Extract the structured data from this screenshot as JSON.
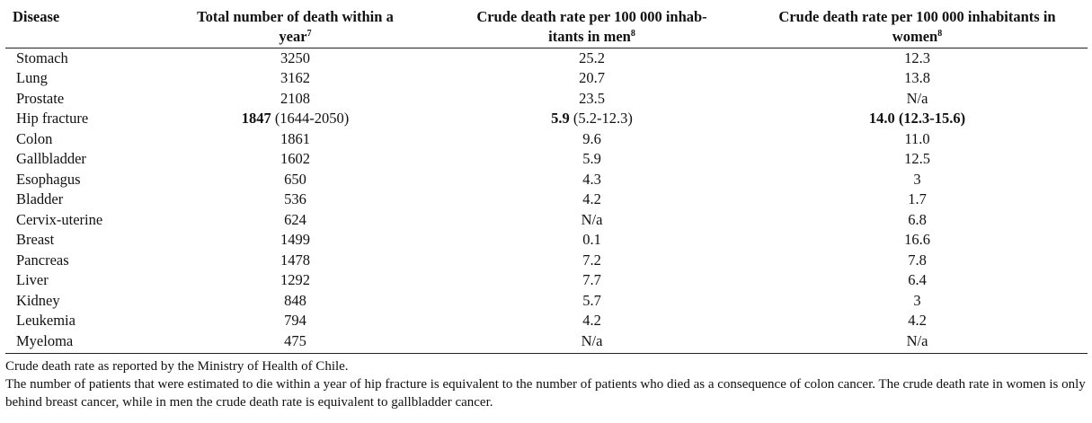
{
  "table": {
    "headers": {
      "disease": "Disease",
      "total": "Total number of death within a year",
      "total_ref": "7",
      "men": "Crude death rate per 100 000 inhab-itants in men",
      "men_ref": "8",
      "women": "Crude death rate per 100 000 inhabitants in women",
      "women_ref": "8"
    },
    "rows": [
      {
        "disease": "Stomach",
        "total": "3250",
        "men": "25.2",
        "women": "12.3"
      },
      {
        "disease": "Lung",
        "total": "3162",
        "men": "20.7",
        "women": "13.8"
      },
      {
        "disease": "Prostate",
        "total": "2108",
        "men": "23.5",
        "women": "N/a"
      },
      {
        "disease": "Hip fracture",
        "total": "1847",
        "total_ci": " (1644-2050)",
        "men": "5.9",
        "men_ci": " (5.2-12.3)",
        "women": "14.0 (12.3-15.6)",
        "highlight": true
      },
      {
        "disease": "Colon",
        "total": "1861",
        "men": "9.6",
        "women": "11.0"
      },
      {
        "disease": "Gallbladder",
        "total": "1602",
        "men": "5.9",
        "women": "12.5"
      },
      {
        "disease": "Esophagus",
        "total": "650",
        "men": "4.3",
        "women": "3"
      },
      {
        "disease": "Bladder",
        "total": "536",
        "men": "4.2",
        "women": "1.7"
      },
      {
        "disease": "Cervix-uterine",
        "total": "624",
        "men": "N/a",
        "women": "6.8"
      },
      {
        "disease": "Breast",
        "total": "1499",
        "men": "0.1",
        "women": "16.6"
      },
      {
        "disease": "Pancreas",
        "total": "1478",
        "men": "7.2",
        "women": "7.8"
      },
      {
        "disease": "Liver",
        "total": "1292",
        "men": "7.7",
        "women": "6.4"
      },
      {
        "disease": "Kidney",
        "total": "848",
        "men": "5.7",
        "women": "3"
      },
      {
        "disease": "Leukemia",
        "total": "794",
        "men": "4.2",
        "women": "4.2"
      },
      {
        "disease": "Myeloma",
        "total": "475",
        "men": "N/a",
        "women": "N/a"
      }
    ]
  },
  "footnotes": [
    "Crude death rate as reported by the Ministry of Health of Chile.",
    "The number of patients that were estimated to die within a year of hip fracture is equivalent to the number of patients who died as a consequence of colon cancer. The crude death rate in women is only behind breast cancer, while in men the crude death rate is equivalent to gallbladder cancer."
  ]
}
